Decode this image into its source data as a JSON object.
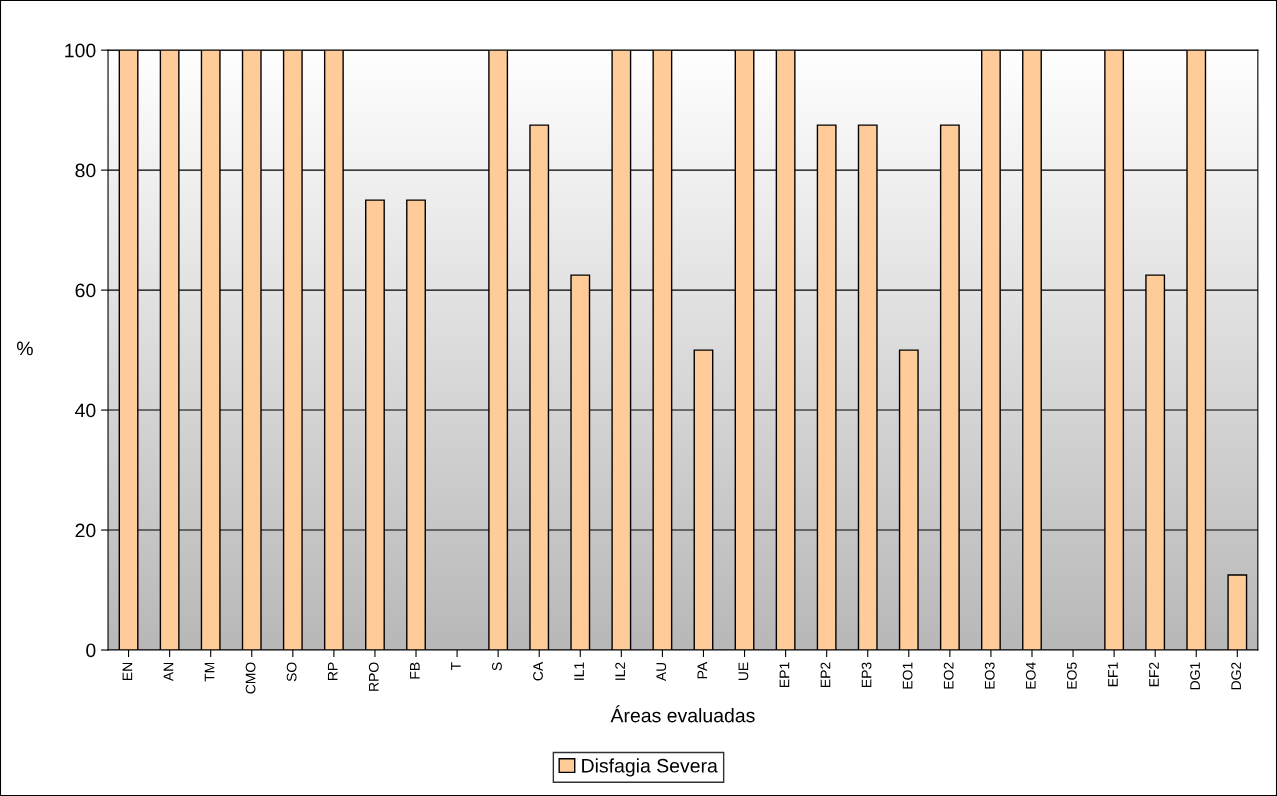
{
  "chart_data": {
    "type": "bar",
    "xlabel": "Áreas evaluadas",
    "ylabel": "%",
    "categories": [
      "EN",
      "AN",
      "TM",
      "CMO",
      "SO",
      "RP",
      "RPO",
      "FB",
      "T",
      "S",
      "CA",
      "IL1",
      "IL2",
      "AU",
      "PA",
      "UE",
      "EP1",
      "EP2",
      "EP3",
      "EO1",
      "EO2",
      "EO3",
      "EO4",
      "EO5",
      "EF1",
      "EF2",
      "DG1",
      "DG2"
    ],
    "series": [
      {
        "name": "Disfagia Severa",
        "color": "#ffcc99",
        "values": [
          100,
          100,
          100,
          100,
          100,
          100,
          75,
          75,
          0,
          100,
          87.5,
          62.5,
          100,
          100,
          50,
          100,
          100,
          87.5,
          87.5,
          50,
          87.5,
          100,
          100,
          0,
          100,
          62.5,
          100,
          12.5
        ]
      }
    ],
    "ylim": [
      0,
      100
    ],
    "yticks": [
      0,
      20,
      40,
      60,
      80,
      100
    ],
    "grid": "y",
    "legend": "bottom"
  }
}
